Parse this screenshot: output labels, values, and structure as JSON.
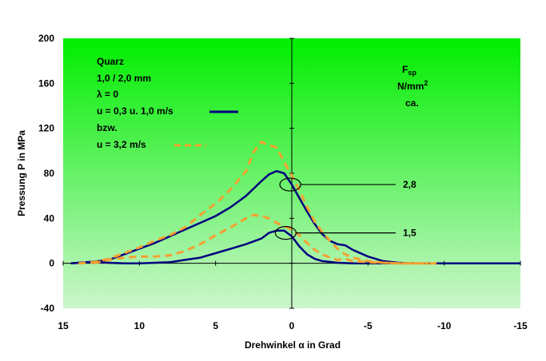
{
  "chart_data": {
    "type": "line",
    "title": "",
    "xlabel_prefix": "Drehwinkel ",
    "xlabel_symbol": "α",
    "xlabel_suffix": " in Grad",
    "ylabel": "Pressung P in MPa",
    "xlim": [
      15,
      -15
    ],
    "ylim": [
      -40,
      200
    ],
    "xticks": [
      15,
      10,
      5,
      0,
      -5,
      -10,
      -15
    ],
    "xtick_labels": [
      "15",
      "10",
      "5",
      "0",
      "-5",
      "-10",
      "-15"
    ],
    "yticks": [
      -40,
      0,
      40,
      80,
      120,
      160,
      200
    ],
    "ytick_labels": [
      "-40",
      "0",
      "40",
      "80",
      "120",
      "160",
      "200"
    ],
    "colors": {
      "plot_top": "#00ee00",
      "plot_bottom": "#ccf5cc",
      "solid": "#00007f",
      "dashed": "#f5a030"
    },
    "legend": {
      "material": "Quarz",
      "size": "1,0 / 2,0 mm",
      "lambda_symbol": "λ",
      "lambda_rest": " = 0",
      "solid_label": "u = 0,3 u. 1,0 m/s",
      "bzw": "bzw.",
      "dashed_label": "u = 3,2 m/s"
    },
    "force_header": {
      "F": "F",
      "sub": "sp",
      "unit": "N/mm",
      "sup": "2",
      "ca": "ca."
    },
    "annotations": [
      {
        "label": "2,8",
        "x": 0.1,
        "y": 70
      },
      {
        "label": "1,5",
        "x": 0.4,
        "y": 27
      }
    ],
    "series": [
      {
        "name": "u = 0,3 u. 1,0 m/s (F = 2,8)",
        "style": "solid",
        "points": [
          [
            14.5,
            0
          ],
          [
            14,
            0.5
          ],
          [
            13,
            1.5
          ],
          [
            12,
            3
          ],
          [
            11,
            8
          ],
          [
            10,
            13
          ],
          [
            9,
            18
          ],
          [
            8,
            24
          ],
          [
            7,
            30
          ],
          [
            6,
            36
          ],
          [
            5,
            42
          ],
          [
            4,
            50
          ],
          [
            3,
            60
          ],
          [
            2,
            73
          ],
          [
            1.5,
            79
          ],
          [
            1,
            82
          ],
          [
            0.5,
            80
          ],
          [
            0,
            70
          ],
          [
            -0.5,
            58
          ],
          [
            -1,
            46
          ],
          [
            -1.5,
            35
          ],
          [
            -2,
            26
          ],
          [
            -2.5,
            20
          ],
          [
            -3,
            17
          ],
          [
            -3.5,
            16
          ],
          [
            -4,
            12
          ],
          [
            -5,
            6
          ],
          [
            -6,
            2
          ],
          [
            -7,
            0.5
          ],
          [
            -8,
            0
          ],
          [
            -15,
            0
          ]
        ]
      },
      {
        "name": "u = 0,3 u. 1,0 m/s (F = 1,5)",
        "style": "solid",
        "points": [
          [
            14.5,
            0
          ],
          [
            14,
            0.5
          ],
          [
            13,
            1
          ],
          [
            12,
            0.5
          ],
          [
            11,
            0
          ],
          [
            10,
            0
          ],
          [
            9,
            0.5
          ],
          [
            8,
            1
          ],
          [
            7,
            3
          ],
          [
            6,
            5
          ],
          [
            5,
            9
          ],
          [
            4,
            13
          ],
          [
            3,
            17
          ],
          [
            2,
            22
          ],
          [
            1.5,
            27
          ],
          [
            1,
            29
          ],
          [
            0.5,
            29
          ],
          [
            0,
            24
          ],
          [
            -0.5,
            15
          ],
          [
            -1,
            8
          ],
          [
            -1.5,
            4
          ],
          [
            -2,
            2
          ],
          [
            -3,
            0.5
          ],
          [
            -4,
            0
          ],
          [
            -15,
            0
          ]
        ]
      },
      {
        "name": "u = 3,2 m/s (F = 2,8)",
        "style": "dashed",
        "points": [
          [
            14,
            0
          ],
          [
            13,
            1
          ],
          [
            12,
            4
          ],
          [
            11,
            9
          ],
          [
            10,
            14
          ],
          [
            9,
            20
          ],
          [
            8,
            25
          ],
          [
            7,
            32
          ],
          [
            6,
            43
          ],
          [
            5,
            53
          ],
          [
            4,
            66
          ],
          [
            3,
            82
          ],
          [
            2.5,
            99
          ],
          [
            2,
            108
          ],
          [
            1.5,
            105
          ],
          [
            1,
            103
          ],
          [
            0.5,
            90
          ],
          [
            0,
            78
          ],
          [
            -0.5,
            65
          ],
          [
            -1,
            50
          ],
          [
            -1.5,
            37
          ],
          [
            -2,
            28
          ],
          [
            -2.5,
            20
          ],
          [
            -3,
            13
          ],
          [
            -3.5,
            8
          ],
          [
            -4,
            5
          ],
          [
            -5,
            2
          ],
          [
            -6,
            0.5
          ],
          [
            -7,
            0
          ],
          [
            -9,
            0
          ]
        ]
      },
      {
        "name": "u = 3,2 m/s (F = 1,5)",
        "style": "dashed",
        "points": [
          [
            13,
            0
          ],
          [
            12,
            3
          ],
          [
            11,
            5
          ],
          [
            10,
            6
          ],
          [
            9,
            6
          ],
          [
            8,
            7
          ],
          [
            7,
            11
          ],
          [
            6,
            17
          ],
          [
            5,
            25
          ],
          [
            4,
            32
          ],
          [
            3,
            40
          ],
          [
            2.5,
            43
          ],
          [
            2,
            42
          ],
          [
            1.5,
            40
          ],
          [
            1,
            36
          ],
          [
            0.5,
            33
          ],
          [
            0,
            30
          ],
          [
            -0.5,
            25
          ],
          [
            -1,
            18
          ],
          [
            -1.5,
            12
          ],
          [
            -2,
            8
          ],
          [
            -2.5,
            5
          ],
          [
            -3,
            3
          ],
          [
            -3.5,
            4
          ],
          [
            -4,
            2
          ],
          [
            -5,
            1
          ],
          [
            -6,
            0.5
          ],
          [
            -7,
            0
          ],
          [
            -9.5,
            0
          ]
        ]
      }
    ]
  }
}
